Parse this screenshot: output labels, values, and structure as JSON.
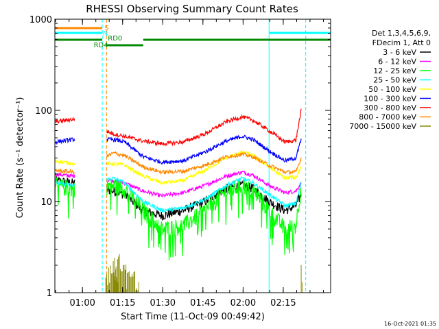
{
  "chart_data": {
    "type": "line",
    "title": "RHESSI Observing Summary Count Rates",
    "xlabel": "Start Time (11-Oct-09 00:49:42)",
    "ylabel": "Count Rate (s⁻¹ detector⁻¹)",
    "yscale": "log",
    "ylim": [
      1,
      1000
    ],
    "xlim_minutes": [
      0,
      103
    ],
    "x_ticks": [
      {
        "minute": 10.3,
        "label": "01:00"
      },
      {
        "minute": 25.3,
        "label": "01:15"
      },
      {
        "minute": 40.3,
        "label": "01:30"
      },
      {
        "minute": 55.3,
        "label": "01:45"
      },
      {
        "minute": 70.3,
        "label": "02:00"
      },
      {
        "minute": 85.3,
        "label": "02:15"
      }
    ],
    "y_ticks": [
      {
        "value": 1,
        "label": "1"
      },
      {
        "value": 10,
        "label": "10"
      },
      {
        "value": 100,
        "label": "100"
      },
      {
        "value": 1000,
        "label": "1000"
      }
    ],
    "legend_header": [
      "Det 1,3,4,5,6,9,",
      "FDecim 1, Att 0"
    ],
    "legend_position": "right",
    "footer": "16-Oct-2021 01:35",
    "series": [
      {
        "name": "3 - 6 keV",
        "color": "#000000",
        "points": [
          [
            0,
            17
          ],
          [
            7,
            16
          ],
          [
            22,
            13
          ],
          [
            26,
            12
          ],
          [
            33,
            8
          ],
          [
            40,
            7
          ],
          [
            48,
            8
          ],
          [
            56,
            10
          ],
          [
            64,
            14
          ],
          [
            70,
            15
          ],
          [
            74,
            14
          ],
          [
            80,
            10
          ],
          [
            86,
            8
          ],
          [
            90,
            9
          ],
          [
            92,
            12
          ]
        ]
      },
      {
        "name": "6 - 12 keV",
        "color": "#ff00ff",
        "points": [
          [
            0,
            20
          ],
          [
            7,
            19
          ],
          [
            22,
            17
          ],
          [
            26,
            16
          ],
          [
            33,
            13
          ],
          [
            40,
            11.5
          ],
          [
            48,
            12.5
          ],
          [
            56,
            15
          ],
          [
            64,
            19
          ],
          [
            70,
            21
          ],
          [
            74,
            19.5
          ],
          [
            80,
            15
          ],
          [
            86,
            12.5
          ],
          [
            90,
            13
          ],
          [
            92,
            16
          ]
        ]
      },
      {
        "name": "12 - 25 keV",
        "color": "#00ff00",
        "points": [
          [
            0,
            15
          ],
          [
            7,
            14
          ],
          [
            22,
            15
          ],
          [
            26,
            14
          ],
          [
            33,
            8
          ],
          [
            40,
            5
          ],
          [
            48,
            5.5
          ],
          [
            56,
            8
          ],
          [
            64,
            13
          ],
          [
            70,
            15
          ],
          [
            74,
            13.5
          ],
          [
            80,
            8
          ],
          [
            86,
            5
          ],
          [
            90,
            5.5
          ],
          [
            92,
            15
          ]
        ]
      },
      {
        "name": "25 - 50 keV",
        "color": "#00ffff",
        "points": [
          [
            0,
            16
          ],
          [
            7,
            15
          ],
          [
            22,
            18
          ],
          [
            26,
            16
          ],
          [
            33,
            10
          ],
          [
            40,
            8
          ],
          [
            48,
            8.5
          ],
          [
            56,
            10.5
          ],
          [
            64,
            15
          ],
          [
            70,
            18
          ],
          [
            74,
            16
          ],
          [
            80,
            12
          ],
          [
            86,
            9
          ],
          [
            90,
            9.5
          ],
          [
            92,
            16
          ]
        ]
      },
      {
        "name": "50 - 100 keV",
        "color": "#ffff00",
        "points": [
          [
            0,
            28
          ],
          [
            7,
            26
          ],
          [
            22,
            26
          ],
          [
            26,
            25
          ],
          [
            33,
            19
          ],
          [
            40,
            16
          ],
          [
            48,
            17
          ],
          [
            56,
            22
          ],
          [
            64,
            30
          ],
          [
            70,
            35
          ],
          [
            74,
            32
          ],
          [
            80,
            24
          ],
          [
            86,
            18
          ],
          [
            90,
            18.5
          ],
          [
            92,
            24
          ]
        ]
      },
      {
        "name": "100 - 300 keV",
        "color": "#0000ff",
        "points": [
          [
            0,
            45
          ],
          [
            7,
            48
          ],
          [
            22,
            48
          ],
          [
            26,
            45
          ],
          [
            33,
            31
          ],
          [
            40,
            27
          ],
          [
            48,
            28
          ],
          [
            56,
            35
          ],
          [
            64,
            46
          ],
          [
            70,
            52
          ],
          [
            74,
            48
          ],
          [
            80,
            36
          ],
          [
            86,
            28
          ],
          [
            90,
            30
          ],
          [
            92,
            48
          ]
        ]
      },
      {
        "name": "300 - 800 keV",
        "color": "#ff0000",
        "points": [
          [
            0,
            75
          ],
          [
            7,
            80
          ],
          [
            22,
            55
          ],
          [
            26,
            52
          ],
          [
            33,
            46
          ],
          [
            40,
            43
          ],
          [
            48,
            45
          ],
          [
            56,
            55
          ],
          [
            64,
            75
          ],
          [
            70,
            85
          ],
          [
            74,
            78
          ],
          [
            80,
            60
          ],
          [
            86,
            45
          ],
          [
            90,
            47
          ],
          [
            92,
            100
          ]
        ]
      },
      {
        "name": "800 - 7000 keV",
        "color": "#ff8800",
        "points": [
          [
            0,
            22
          ],
          [
            7,
            21
          ],
          [
            22,
            34
          ],
          [
            26,
            32
          ],
          [
            33,
            24
          ],
          [
            40,
            21
          ],
          [
            48,
            21.5
          ],
          [
            56,
            25
          ],
          [
            64,
            31
          ],
          [
            70,
            33
          ],
          [
            74,
            31
          ],
          [
            80,
            25
          ],
          [
            86,
            21
          ],
          [
            90,
            21
          ],
          [
            92,
            30
          ]
        ]
      },
      {
        "name": "7000 - 15000 keV",
        "color": "#888800",
        "points": [
          [
            19,
            1.5
          ],
          [
            22,
            1.8
          ],
          [
            26,
            1.2
          ],
          [
            31,
            1.0
          ],
          [
            92,
            1.6
          ]
        ]
      }
    ],
    "attenuator_bars": [
      {
        "label": "S",
        "color": "#ff8800",
        "segments": [
          [
            0,
            17.7
          ]
        ]
      },
      {
        "label": "N",
        "color": "#00ffff",
        "segments": [
          [
            0,
            17.7
          ],
          [
            80,
            103
          ]
        ]
      },
      {
        "label": "RD0",
        "color": "#008800",
        "segments": [
          [
            0,
            103
          ]
        ]
      },
      {
        "label": "RD4",
        "color": "#008800",
        "segments": [
          [
            19,
            33
          ]
        ]
      }
    ],
    "vertical_markers": [
      {
        "minute": 0,
        "color": "#00ffff",
        "style": "solid"
      },
      {
        "minute": 17.7,
        "color": "#00ffff",
        "style": "dashed"
      },
      {
        "minute": 19.3,
        "color": "#ff8800",
        "style": "dashed"
      },
      {
        "minute": 80,
        "color": "#00ffff",
        "style": "solid"
      },
      {
        "minute": 93.7,
        "color": "#00ffff",
        "style": "dashed"
      }
    ],
    "gaps": [
      [
        7.5,
        19.3
      ]
    ]
  }
}
